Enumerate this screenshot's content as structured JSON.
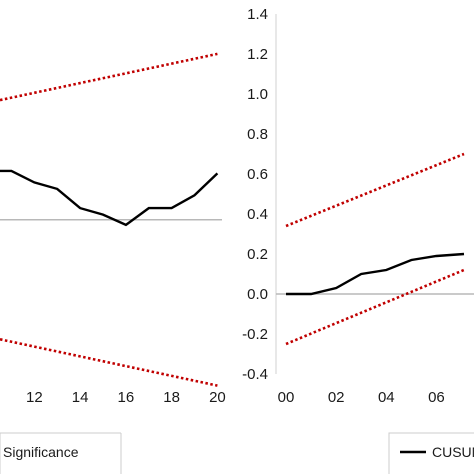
{
  "chart_data": [
    {
      "type": "line",
      "panel": "left",
      "x_ticks": [
        "12",
        "14",
        "16",
        "18",
        "20"
      ],
      "xlim": [
        10.5,
        20.2
      ],
      "ylim": [
        -1.2,
        1.6
      ],
      "baseline": 0,
      "series": [
        {
          "name": "",
          "style": "solid",
          "color": "#000000",
          "x": [
            10.5,
            11,
            12,
            13,
            14,
            15,
            16,
            17,
            18,
            19,
            20
          ],
          "y": [
            0.38,
            0.38,
            0.29,
            0.24,
            0.09,
            0.04,
            -0.04,
            0.09,
            0.09,
            0.19,
            0.36
          ]
        },
        {
          "name": "",
          "style": "dotted",
          "color": "#c00000",
          "x": [
            10.5,
            20
          ],
          "y": [
            0.93,
            1.29
          ]
        },
        {
          "name": "",
          "style": "dotted",
          "color": "#c00000",
          "x": [
            10.5,
            20
          ],
          "y": [
            -0.93,
            -1.29
          ]
        }
      ],
      "legend": [
        {
          "label": "Significance",
          "style": "dotted",
          "color": "#c00000"
        }
      ]
    },
    {
      "type": "line",
      "panel": "right",
      "x_ticks": [
        "00",
        "02",
        "04",
        "06"
      ],
      "y_ticks": [
        "1.4",
        "1.2",
        "1.0",
        "0.8",
        "0.6",
        "0.4",
        "0.2",
        "0.0",
        "-0.2",
        "-0.4"
      ],
      "xlim": [
        -0.4,
        7.1
      ],
      "ylim": [
        -0.4,
        1.4
      ],
      "baseline": 0,
      "series": [
        {
          "name": "CUSUM",
          "style": "solid",
          "color": "#000000",
          "x": [
            0,
            1,
            2,
            3,
            4,
            5,
            6,
            7.1
          ],
          "y": [
            0.0,
            0.0,
            0.03,
            0.1,
            0.12,
            0.17,
            0.19,
            0.2
          ]
        },
        {
          "name": "",
          "style": "dotted",
          "color": "#c00000",
          "x": [
            0,
            7.1
          ],
          "y": [
            0.34,
            0.7
          ]
        },
        {
          "name": "",
          "style": "dotted",
          "color": "#c00000",
          "x": [
            0,
            7.1
          ],
          "y": [
            -0.25,
            0.12
          ]
        }
      ],
      "legend": [
        {
          "label": "CUSUM",
          "style": "solid",
          "color": "#000000"
        }
      ]
    }
  ]
}
